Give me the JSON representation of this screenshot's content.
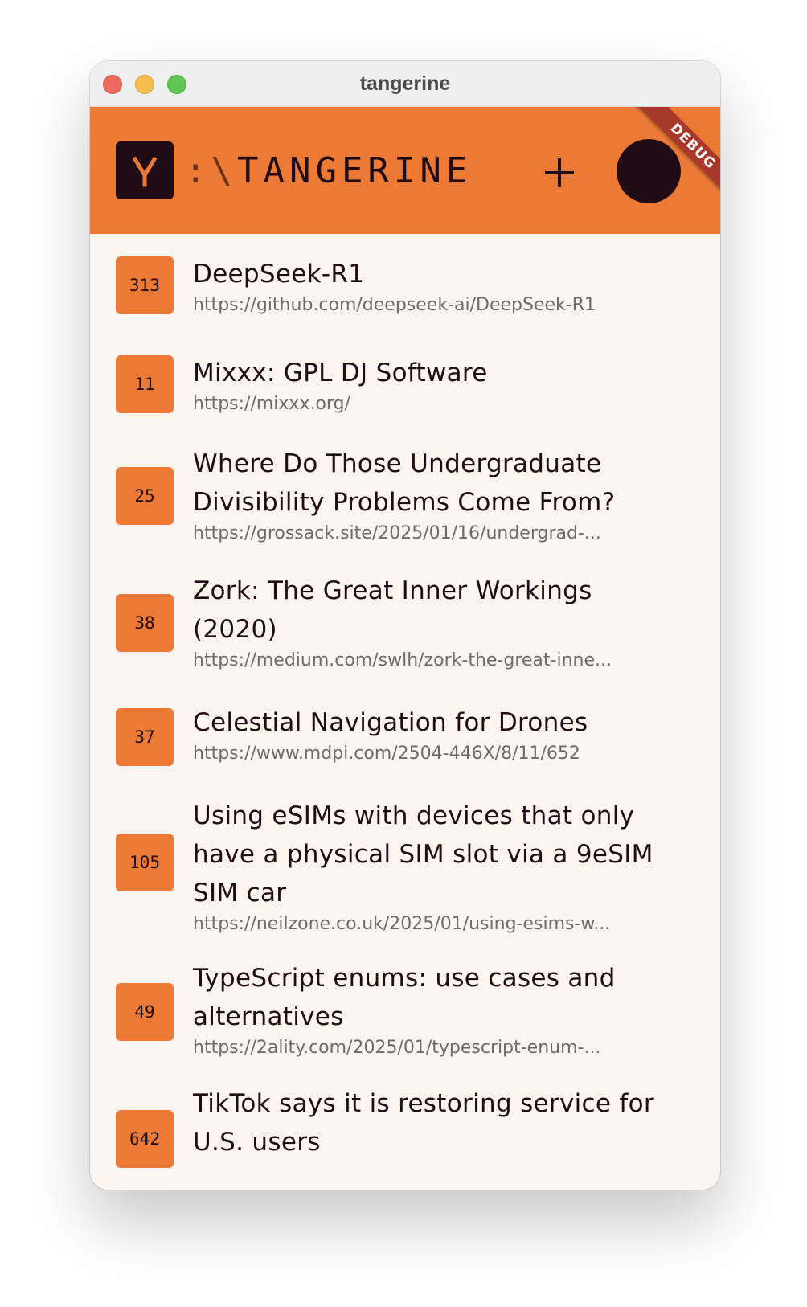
{
  "window": {
    "title": "tangerine"
  },
  "appbar": {
    "brand_prefix": ":\\",
    "brand_name": "TANGERINE",
    "logo_icon": "tangerine-logo-icon",
    "add_icon": "plus-icon",
    "debug_banner": "DEBUG",
    "colors": {
      "bar": "#ec7a36",
      "dark": "#1f0c14",
      "ribbon": "#a8382a"
    }
  },
  "stories": [
    {
      "score": "313",
      "title": "DeepSeek-R1",
      "url": "https://github.com/deepseek-ai/DeepSeek-R1"
    },
    {
      "score": "11",
      "title": "Mixxx: GPL DJ Software",
      "url": "https://mixxx.org/"
    },
    {
      "score": "25",
      "title": "Where Do Those Undergraduate Divisibility Problems Come From?",
      "url": "https://grossack.site/2025/01/16/undergrad-..."
    },
    {
      "score": "38",
      "title": "Zork: The Great Inner Workings (2020)",
      "url": "https://medium.com/swlh/zork-the-great-inne..."
    },
    {
      "score": "37",
      "title": "Celestial Navigation for Drones",
      "url": "https://www.mdpi.com/2504-446X/8/11/652"
    },
    {
      "score": "105",
      "title": "Using eSIMs with devices that only have a physical SIM slot via a 9eSIM SIM car",
      "url": "https://neilzone.co.uk/2025/01/using-esims-w..."
    },
    {
      "score": "49",
      "title": "TypeScript enums: use cases and alternatives",
      "url": "https://2ality.com/2025/01/typescript-enum-..."
    },
    {
      "score": "642",
      "title": "TikTok says it is restoring service for U.S. users",
      "url": ""
    }
  ]
}
